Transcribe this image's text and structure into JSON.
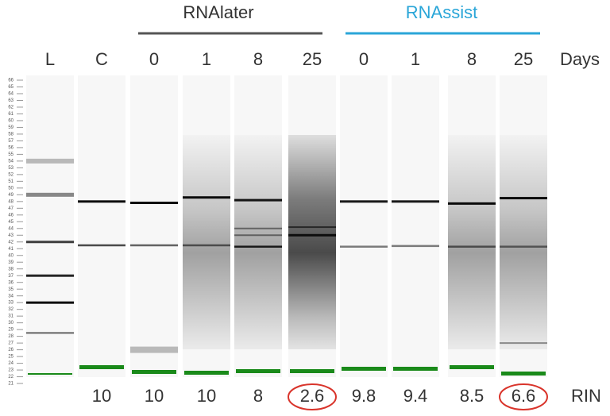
{
  "groups": [
    {
      "title": "RNAlater"
    },
    {
      "title": "RNAssist"
    }
  ],
  "lanes": [
    {
      "label": "L"
    },
    {
      "label": "C",
      "rin": "10"
    },
    {
      "label": "0",
      "rin": "10"
    },
    {
      "label": "1",
      "rin": "10"
    },
    {
      "label": "8",
      "rin": "8"
    },
    {
      "label": "25",
      "rin": "2.6",
      "circled": true
    },
    {
      "label": "0",
      "rin": "9.8"
    },
    {
      "label": "1",
      "rin": "9.4"
    },
    {
      "label": "8",
      "rin": "8.5"
    },
    {
      "label": "25",
      "rin": "6.6",
      "circled": true
    }
  ],
  "days_label": "Days",
  "rin_label": "RIN",
  "ladder_labels": [
    66,
    65,
    64,
    63,
    62,
    61,
    60,
    59,
    58,
    57,
    56,
    55,
    54,
    53,
    52,
    51,
    50,
    49,
    48,
    47,
    46,
    45,
    44,
    43,
    42,
    41,
    40,
    39,
    38,
    37,
    36,
    35,
    34,
    33,
    32,
    31,
    30,
    29,
    28,
    27,
    26,
    25,
    24,
    23,
    22,
    21
  ]
}
